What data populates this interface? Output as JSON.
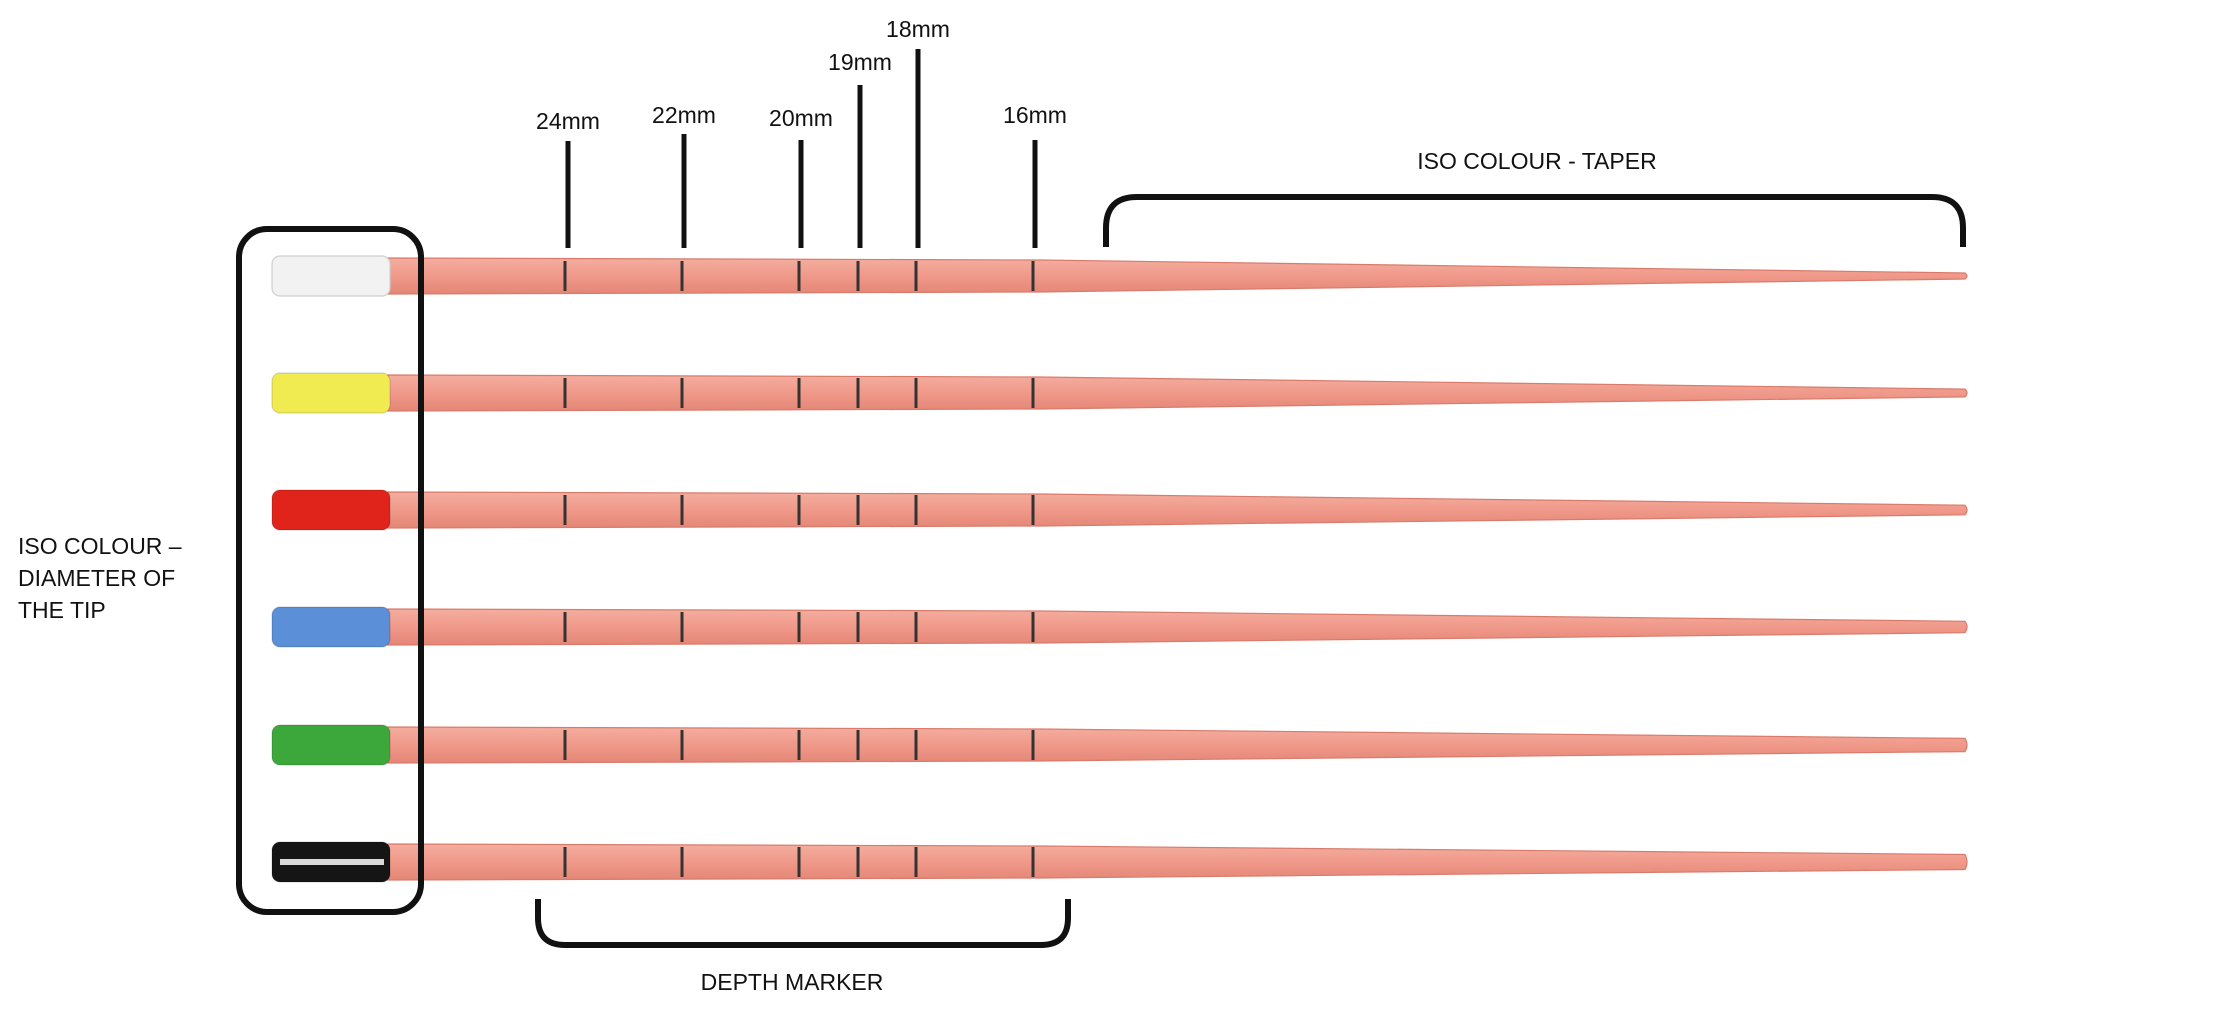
{
  "labels": {
    "left_lines": [
      "ISO COLOUR –",
      "DIAMETER OF",
      "THE TIP"
    ],
    "taper": "ISO COLOUR - TAPER",
    "depth": "DEPTH MARKER"
  },
  "depth_markers": [
    "24mm",
    "22mm",
    "20mm",
    "19mm",
    "18mm",
    "16mm"
  ],
  "colors": {
    "shaft": "#F0998A",
    "shaft_edge": "#D97B6C",
    "bracket": "#111111",
    "marker": "#333333"
  },
  "cones": [
    {
      "name": "white",
      "color": "#F2F2F2"
    },
    {
      "name": "yellow",
      "color": "#F1EB52"
    },
    {
      "name": "red",
      "color": "#E0231B"
    },
    {
      "name": "blue",
      "color": "#5B8FD8"
    },
    {
      "name": "green",
      "color": "#3CA83C"
    },
    {
      "name": "black",
      "color": "#151515"
    }
  ]
}
